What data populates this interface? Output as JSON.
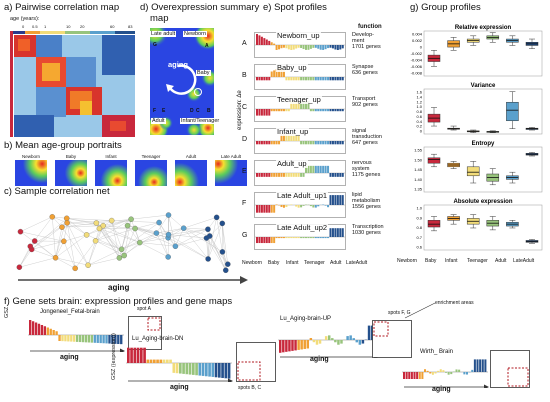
{
  "panel_a": {
    "title": "a) Pairwise correlation map",
    "age_label": "age (years):",
    "age_ticks": [
      "0",
      "0.5",
      "1",
      "10",
      "20",
      "60",
      "83"
    ]
  },
  "panel_b": {
    "title": "b) Mean age-group portraits",
    "portraits": [
      "Newborn",
      "Baby",
      "Infant",
      "Teenager",
      "Adult",
      "Late Adult"
    ]
  },
  "panel_c": {
    "title": "c) Sample correlation net",
    "axis_label": "aging"
  },
  "panel_d": {
    "title_line1": "d) Overexpression summary",
    "title_line2": "map",
    "labels": {
      "late_adult": "Late adult",
      "newborn": "Newborn",
      "baby": "Baby",
      "adult": "Adult",
      "infant_teen": "Infant/Teenager",
      "center": "aging"
    },
    "spot_letters": [
      "G",
      "A",
      "F",
      "E",
      "D",
      "C",
      "B"
    ]
  },
  "panel_e": {
    "title": "e) Spot profiles",
    "ylabel": "expression: Δe",
    "function_header": "function",
    "x_labels": [
      "Newborn",
      "Baby",
      "Infant",
      "Teenager",
      "Adult",
      "LateAdult"
    ],
    "spots": [
      {
        "letter": "A",
        "name": "Newborn_up",
        "function": "Develop-\nment",
        "genes": "1701 genes"
      },
      {
        "letter": "B",
        "name": "Baby_up",
        "function": "Synapse",
        "genes": "636 genes"
      },
      {
        "letter": "C",
        "name": "Teenager_up",
        "function": "Transport",
        "genes": "902 genes"
      },
      {
        "letter": "D",
        "name": "Infant_up",
        "function": "signal\ntransduction",
        "genes": "647 genes"
      },
      {
        "letter": "E",
        "name": "Adult_up",
        "function": "nervous\nsystem",
        "genes": "1175 genes"
      },
      {
        "letter": "F",
        "name": "Late Adult_up1",
        "function": "lipid\nmetabolism",
        "genes": "1556 genes"
      },
      {
        "letter": "G",
        "name": "Late Adult_up2",
        "function": "Transcription",
        "genes": "1030 genes"
      }
    ]
  },
  "panel_g": {
    "title": "g) Group profiles",
    "x_labels": [
      "Newborn",
      "Baby",
      "Infant",
      "Teenager",
      "Adult",
      "LateAdult"
    ],
    "colors": [
      "#c8283c",
      "#f0a034",
      "#f2dc7a",
      "#98c47c",
      "#5aa0cc",
      "#24508c"
    ],
    "boxes": [
      {
        "title": "Relative expression",
        "ticks": [
          "0.004",
          "0.002",
          "0",
          "-0.002",
          "-0.004",
          "-0.006",
          "-0.008"
        ],
        "ymin": -0.009,
        "ymax": 0.005,
        "stats": [
          [
            -0.006,
            -0.0045,
            -0.0035,
            -0.0025,
            -0.001
          ],
          [
            -0.001,
            0.0,
            0.001,
            0.002,
            0.003
          ],
          [
            0.0005,
            0.0015,
            0.002,
            0.0025,
            0.0035
          ],
          [
            0.0015,
            0.0025,
            0.003,
            0.0035,
            0.0045
          ],
          [
            0.0005,
            0.0015,
            0.002,
            0.0025,
            0.0035
          ],
          [
            -0.0005,
            0.0005,
            0.001,
            0.0015,
            0.0025
          ]
        ]
      },
      {
        "title": "Variance",
        "ticks": [
          "1.6",
          "1.4",
          "1.2",
          "1.0",
          "0.8",
          "0.6",
          "0.4",
          "0.2",
          "0"
        ],
        "ymin": 0,
        "ymax": 1.7,
        "stats": [
          [
            0.3,
            0.45,
            0.6,
            0.75,
            1.0
          ],
          [
            0.15,
            0.18,
            0.2,
            0.22,
            0.3
          ],
          [
            0.05,
            0.08,
            0.1,
            0.12,
            0.15
          ],
          [
            0.05,
            0.07,
            0.08,
            0.1,
            0.12
          ],
          [
            0.2,
            0.5,
            0.9,
            1.2,
            1.6
          ],
          [
            0.15,
            0.17,
            0.2,
            0.22,
            0.25
          ]
        ]
      },
      {
        "title": "Entropy",
        "ticks": [
          "1.55",
          "1.50",
          "1.45",
          "1.40",
          "1.35"
        ],
        "ymin": 1.33,
        "ymax": 1.58,
        "stats": [
          [
            1.47,
            1.49,
            1.51,
            1.52,
            1.54
          ],
          [
            1.46,
            1.47,
            1.48,
            1.49,
            1.5
          ],
          [
            1.38,
            1.42,
            1.44,
            1.47,
            1.5
          ],
          [
            1.37,
            1.39,
            1.41,
            1.43,
            1.46
          ],
          [
            1.38,
            1.4,
            1.41,
            1.42,
            1.44
          ],
          [
            1.53,
            1.535,
            1.54,
            1.545,
            1.55
          ]
        ]
      },
      {
        "title": "Absolute expression",
        "ticks": [
          "1.0",
          "0.9",
          "0.8",
          "0.7",
          "0.6"
        ],
        "ymin": 0.55,
        "ymax": 1.02,
        "stats": [
          [
            0.75,
            0.79,
            0.82,
            0.86,
            0.9
          ],
          [
            0.82,
            0.86,
            0.88,
            0.9,
            0.92
          ],
          [
            0.78,
            0.82,
            0.85,
            0.88,
            0.92
          ],
          [
            0.76,
            0.8,
            0.83,
            0.86,
            0.9
          ],
          [
            0.78,
            0.8,
            0.82,
            0.84,
            0.86
          ],
          [
            0.62,
            0.63,
            0.64,
            0.65,
            0.66
          ]
        ]
      }
    ]
  },
  "panel_f": {
    "title": "f) Gene sets brain: expression profiles and gene maps",
    "ylabel_top": "GSZ",
    "ylabel_bottom": "(expression)",
    "axis_label": "aging",
    "sets": [
      {
        "name": "Jongeneel_Fetal-brain",
        "spot": "spot A"
      },
      {
        "name": "Lu_Aging-brain-DN",
        "spot": "spots B, C"
      },
      {
        "name": "Lu_Aging-brain-UP",
        "spot": "spots F, G"
      },
      {
        "name": "Wirth_ Brain",
        "spot": ""
      }
    ],
    "enrichment_label": "enrichment areas"
  }
}
